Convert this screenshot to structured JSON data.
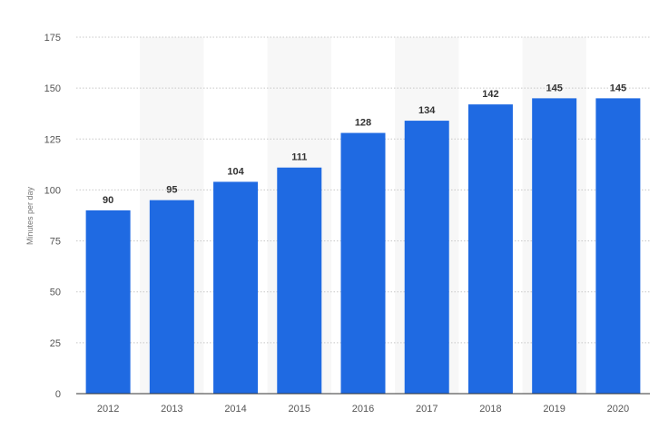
{
  "chart_data": {
    "type": "bar",
    "categories": [
      "2012",
      "2013",
      "2014",
      "2015",
      "2016",
      "2017",
      "2018",
      "2019",
      "2020"
    ],
    "values": [
      90,
      95,
      104,
      111,
      128,
      134,
      142,
      145,
      145
    ],
    "title": "",
    "xlabel": "",
    "ylabel": "Minutes per day",
    "ylim": [
      0,
      175
    ],
    "yticks": [
      0,
      25,
      50,
      75,
      100,
      125,
      150,
      175
    ],
    "grid": true,
    "alternating_column_shading": true,
    "bar_color": "#1f6ae2",
    "label_color": "#333333",
    "tick_label_color": "#555555",
    "grid_color": "#c8c8c8",
    "shade_color": "#f7f7f7"
  }
}
